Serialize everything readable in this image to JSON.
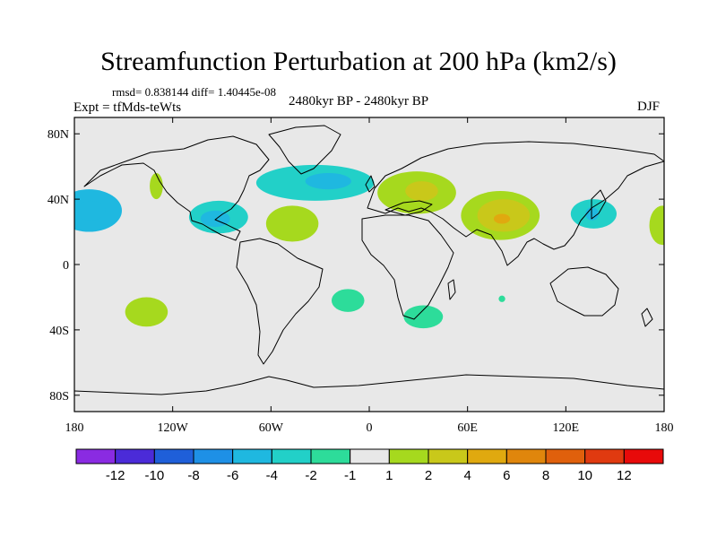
{
  "chart_data": {
    "type": "heatmap",
    "title": "Streamfunction Perturbation at 200 hPa (km2/s)",
    "stats_line": "rmsd= 0.838144 diff= 1.40445e-08",
    "experiment": "Expt = tfMds-teWts",
    "period": "2480kyr BP - 2480kyr BP",
    "season": "DJF",
    "projection": "cylindrical equidistant, global",
    "x_range": [
      -180,
      180
    ],
    "y_range": [
      -90,
      90
    ],
    "x_ticks": [
      {
        "value": -180,
        "label": "180"
      },
      {
        "value": -120,
        "label": "120W"
      },
      {
        "value": -60,
        "label": "60W"
      },
      {
        "value": 0,
        "label": "0"
      },
      {
        "value": 60,
        "label": "60E"
      },
      {
        "value": 120,
        "label": "120E"
      },
      {
        "value": 180,
        "label": "180"
      }
    ],
    "y_ticks": [
      {
        "value": 80,
        "label": "80N"
      },
      {
        "value": 40,
        "label": "40N"
      },
      {
        "value": 0,
        "label": "0"
      },
      {
        "value": -40,
        "label": "40S"
      },
      {
        "value": -80,
        "label": "80S"
      }
    ],
    "colorbar": {
      "boundary_labels": [
        "-12",
        "-10",
        "-8",
        "-6",
        "-4",
        "-2",
        "-1",
        "1",
        "2",
        "4",
        "6",
        "8",
        "10",
        "12"
      ],
      "colors": [
        "#8a2be2",
        "#4b2bd8",
        "#1f5fd9",
        "#1e90e6",
        "#1fb8e0",
        "#22d0c8",
        "#2ddc9a",
        "#e8e8e8",
        "#a6d91e",
        "#c9c81a",
        "#e0a90f",
        "#e0860c",
        "#e0600c",
        "#e03a10",
        "#e80a0a"
      ]
    },
    "features": [
      {
        "name": "north-pacific-negative",
        "lon": -171,
        "lat": 33,
        "r_lon": 20,
        "r_lat": 13,
        "level": "-4"
      },
      {
        "name": "north-pacific-core",
        "lon": -170,
        "lat": 33,
        "r_lon": 9,
        "r_lat": 6,
        "level": "-4"
      },
      {
        "name": "us-west-positive",
        "lon": -130,
        "lat": 48,
        "r_lon": 4,
        "r_lat": 8,
        "level": "1"
      },
      {
        "name": "gulf-negative",
        "lon": -92,
        "lat": 29,
        "r_lon": 18,
        "r_lat": 10,
        "level": "-2"
      },
      {
        "name": "gulf-core",
        "lon": -94,
        "lat": 28,
        "r_lon": 9,
        "r_lat": 5,
        "level": "-4"
      },
      {
        "name": "north-atlantic-negative",
        "lon": -33,
        "lat": 50,
        "r_lon": 36,
        "r_lat": 11,
        "level": "-2"
      },
      {
        "name": "north-atlantic-core",
        "lon": -25,
        "lat": 51,
        "r_lon": 14,
        "r_lat": 5,
        "level": "-4"
      },
      {
        "name": "central-atlantic-positive",
        "lon": -47,
        "lat": 25,
        "r_lon": 16,
        "r_lat": 11,
        "level": "1"
      },
      {
        "name": "europe-positive",
        "lon": 29,
        "lat": 44,
        "r_lon": 24,
        "r_lat": 13,
        "level": "1"
      },
      {
        "name": "europe-core",
        "lon": 32,
        "lat": 45,
        "r_lon": 10,
        "r_lat": 6,
        "level": "2"
      },
      {
        "name": "asia-positive",
        "lon": 80,
        "lat": 30,
        "r_lon": 24,
        "r_lat": 15,
        "level": "1"
      },
      {
        "name": "asia-inner",
        "lon": 82,
        "lat": 30,
        "r_lon": 16,
        "r_lat": 10,
        "level": "2"
      },
      {
        "name": "asia-core",
        "lon": 81,
        "lat": 28,
        "r_lon": 5,
        "r_lat": 3,
        "level": "4"
      },
      {
        "name": "japan-negative",
        "lon": 137,
        "lat": 31,
        "r_lon": 14,
        "r_lat": 9,
        "level": "-2"
      },
      {
        "name": "japan-core",
        "lon": 136,
        "lat": 31,
        "r_lon": 4,
        "r_lat": 4,
        "level": "-4"
      },
      {
        "name": "dateline-positive",
        "lon": 179,
        "lat": 24,
        "r_lon": 8,
        "r_lat": 12,
        "level": "1"
      },
      {
        "name": "south-pacific-positive",
        "lon": -136,
        "lat": -29,
        "r_lon": 13,
        "r_lat": 9,
        "level": "1"
      },
      {
        "name": "south-atlantic-negative",
        "lon": -13,
        "lat": -22,
        "r_lon": 10,
        "r_lat": 7,
        "level": "-1"
      },
      {
        "name": "south-africa-negative",
        "lon": 33,
        "lat": -32,
        "r_lon": 12,
        "r_lat": 7,
        "level": "-1"
      },
      {
        "name": "indian-ocean-small",
        "lon": 81,
        "lat": -21,
        "r_lon": 2,
        "r_lat": 2,
        "level": "-1"
      }
    ]
  }
}
